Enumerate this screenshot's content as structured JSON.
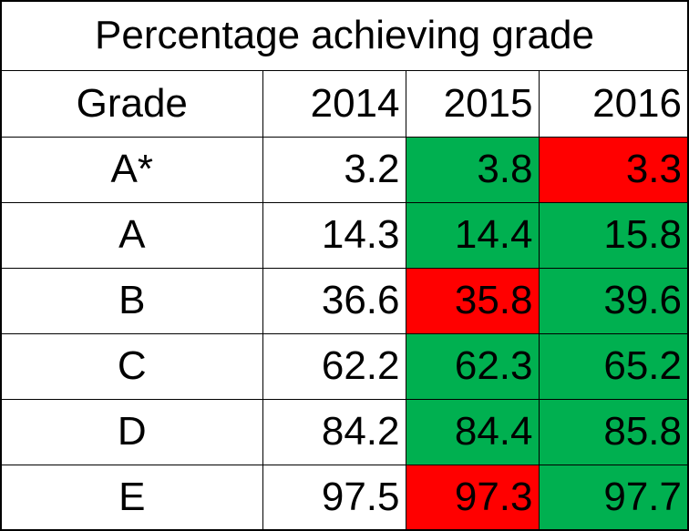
{
  "chart_data": {
    "type": "table",
    "title": "Percentage achieving grade",
    "row_header_label": "Grade",
    "columns": [
      "2014",
      "2015",
      "2016"
    ],
    "rows": [
      {
        "grade": "A*",
        "values": [
          "3.2",
          "3.8",
          "3.3"
        ],
        "highlight": [
          null,
          "up",
          "down"
        ]
      },
      {
        "grade": "A",
        "values": [
          "14.3",
          "14.4",
          "15.8"
        ],
        "highlight": [
          null,
          "up",
          "up"
        ]
      },
      {
        "grade": "B",
        "values": [
          "36.6",
          "35.8",
          "39.6"
        ],
        "highlight": [
          null,
          "down",
          "up"
        ]
      },
      {
        "grade": "C",
        "values": [
          "62.2",
          "62.3",
          "65.2"
        ],
        "highlight": [
          null,
          "up",
          "up"
        ]
      },
      {
        "grade": "D",
        "values": [
          "84.2",
          "84.4",
          "85.8"
        ],
        "highlight": [
          null,
          "up",
          "up"
        ]
      },
      {
        "grade": "E",
        "values": [
          "97.5",
          "97.3",
          "97.7"
        ],
        "highlight": [
          null,
          "down",
          "up"
        ]
      }
    ],
    "colors": {
      "up": "#00b050",
      "down": "#ff0000",
      "none": "#ffffff"
    }
  }
}
